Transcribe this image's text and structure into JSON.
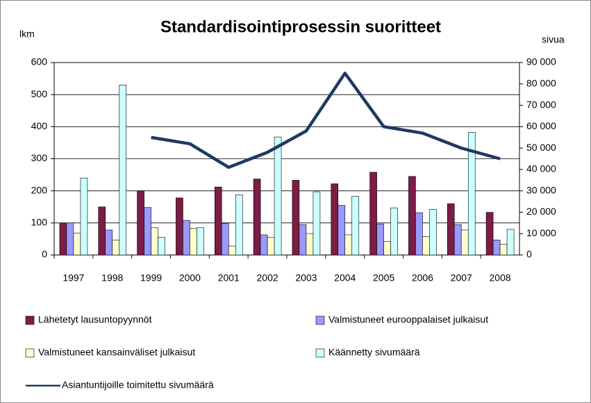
{
  "chart_data": {
    "type": "bar",
    "title": "Standardisointiprosessin suoritteet",
    "ylabel": "lkm",
    "y2label": "sivua",
    "categories": [
      "1997",
      "1998",
      "1999",
      "2000",
      "2001",
      "2002",
      "2003",
      "2004",
      "2005",
      "2006",
      "2007",
      "2008"
    ],
    "series": [
      {
        "name": "Lähetetyt lausuntopyynnöt",
        "color": "#7b1d45",
        "values": [
          100,
          150,
          200,
          178,
          212,
          237,
          233,
          222,
          258,
          245,
          160,
          133
        ]
      },
      {
        "name": "Valmistuneet eurooppalaiset julkaisut",
        "color": "#9999ff",
        "values": [
          100,
          78,
          148,
          108,
          98,
          63,
          95,
          155,
          97,
          132,
          95,
          47
        ]
      },
      {
        "name": "Valmistuneet kansainväliset julkaisut",
        "color": "#ffffcc",
        "values": [
          68,
          47,
          85,
          83,
          28,
          55,
          67,
          63,
          42,
          57,
          78,
          33
        ]
      },
      {
        "name": "Käännetty sivumäärä",
        "color": "#ccffff",
        "values": [
          240,
          530,
          55,
          85,
          188,
          368,
          197,
          183,
          147,
          142,
          382,
          80
        ]
      },
      {
        "name": "Asiantuntijoille toimitettu sivumäärä",
        "color": "#1f3864",
        "type": "line",
        "axis": "y2",
        "values": [
          null,
          null,
          55000,
          52000,
          41000,
          48000,
          58000,
          85000,
          60000,
          57000,
          50000,
          45000
        ]
      }
    ],
    "ylim": [
      0,
      600
    ],
    "yticks": [
      0,
      100,
      200,
      300,
      400,
      500,
      600
    ],
    "y2lim": [
      0,
      90000
    ],
    "y2ticks": [
      0,
      {
        "value": 10000,
        "label": "10 000"
      },
      {
        "value": 20000,
        "label": "20 000"
      },
      {
        "value": 30000,
        "label": "30 000"
      },
      {
        "value": 40000,
        "label": "40 000"
      },
      {
        "value": 50000,
        "label": "50 000"
      },
      {
        "value": 60000,
        "label": "60 000"
      },
      {
        "value": 70000,
        "label": "70 000"
      },
      {
        "value": 80000,
        "label": "80 000"
      },
      {
        "value": 90000,
        "label": "90 000"
      }
    ],
    "grid": true,
    "legend": "bottom"
  }
}
